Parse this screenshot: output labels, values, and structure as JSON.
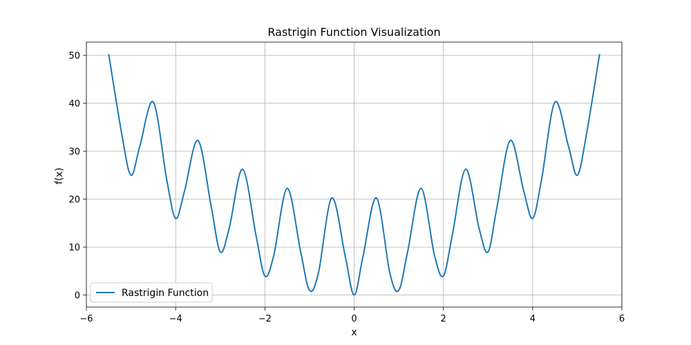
{
  "chart_data": {
    "type": "line",
    "title": "Rastrigin Function Visualization",
    "xlabel": "x",
    "ylabel": "f(x)",
    "xlim": [
      -6,
      6
    ],
    "ylim": [
      0,
      50
    ],
    "x_ticks": [
      -6,
      -4,
      -2,
      0,
      2,
      4,
      6
    ],
    "y_ticks": [
      0,
      10,
      20,
      30,
      40,
      50
    ],
    "x_tick_labels": [
      "−6",
      "−4",
      "−2",
      "0",
      "2",
      "4",
      "6"
    ],
    "y_tick_labels": [
      "0",
      "10",
      "20",
      "30",
      "40",
      "50"
    ],
    "grid": true,
    "legend_position": "lower-left",
    "series": [
      {
        "name": "Rastrigin Function",
        "color": "#1f77b4",
        "x": [
          -5.5,
          -5.2,
          -5.0,
          -4.8,
          -4.5,
          -4.2,
          -4.0,
          -3.8,
          -3.5,
          -3.2,
          -3.0,
          -2.8,
          -2.5,
          -2.2,
          -2.0,
          -1.8,
          -1.5,
          -1.2,
          -1.0,
          -0.8,
          -0.5,
          -0.2,
          0.0,
          0.2,
          0.5,
          0.8,
          1.0,
          1.2,
          1.5,
          1.8,
          2.0,
          2.2,
          2.5,
          2.8,
          3.0,
          3.2,
          3.5,
          3.8,
          4.0,
          4.2,
          4.5,
          4.8,
          5.0,
          5.2,
          5.5
        ],
        "values": [
          50.25,
          33.2,
          24.99,
          31.12,
          40.25,
          24.1,
          15.99,
          21.7,
          32.25,
          18.3,
          8.99,
          13.9,
          26.25,
          12.5,
          3.98,
          8.3,
          22.25,
          9.1,
          0.99,
          4.6,
          20.25,
          8.1,
          0.0,
          8.1,
          20.25,
          4.6,
          0.99,
          9.1,
          22.25,
          8.3,
          3.98,
          12.5,
          26.25,
          13.9,
          8.99,
          18.3,
          32.25,
          21.7,
          15.99,
          24.1,
          40.25,
          31.12,
          24.99,
          33.2,
          50.25
        ]
      }
    ]
  }
}
